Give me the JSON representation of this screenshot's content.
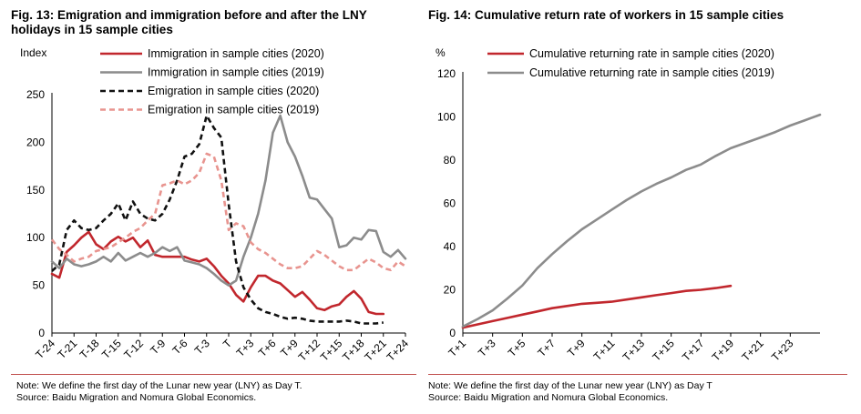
{
  "left": {
    "title": "Fig. 13: Emigration and immigration before and after the LNY holidays in 15 sample cities",
    "title_line1": "Fig. 13: Emigration and immigration before and after the LNY",
    "title_line2": "holidays in 15 sample cities",
    "note": "Note: We define the first day of the Lunar new year (LNY) as Day T.",
    "source": "Source: Baidu Migration and Nomura Global Economics."
  },
  "right": {
    "title": "Fig. 14: Cumulative return rate of workers in 15 sample cities",
    "note": "Note: We define the first day of the Lunar new year (LNY) as Day T",
    "source": "Source: Baidu Migration and Nomura Global Economics."
  },
  "colors": {
    "red": "#c1272d",
    "grey": "#8c8c8c",
    "black": "#111111",
    "pink": "#e8948f",
    "rule": "#c0504d"
  },
  "chart_data": [
    {
      "type": "line",
      "ylabel": "Index",
      "ylim": [
        0,
        250
      ],
      "yticks": [
        0,
        50,
        100,
        150,
        200,
        250
      ],
      "x_range": [
        -24,
        24
      ],
      "xtick_values": [
        -24,
        -21,
        -18,
        -15,
        -12,
        -9,
        -6,
        -3,
        0,
        3,
        6,
        9,
        12,
        15,
        18,
        21,
        24
      ],
      "xtick_labels": [
        "T-24",
        "T-21",
        "T-18",
        "T-15",
        "T-12",
        "T-9",
        "T-6",
        "T-3",
        "T",
        "T+3",
        "T+6",
        "T+9",
        "T+12",
        "T+15",
        "T+18",
        "T+21",
        "T+24"
      ],
      "legend_position": "top",
      "series": [
        {
          "name": "Immigration in sample cities (2020)",
          "color": "#c1272d",
          "style": "solid",
          "x": [
            -24,
            -23,
            -22,
            -21,
            -20,
            -19,
            -18,
            -17,
            -16,
            -15,
            -14,
            -13,
            -12,
            -11,
            -10,
            -9,
            -8,
            -7,
            -6,
            -5,
            -4,
            -3,
            -2,
            -1,
            0,
            1,
            2,
            3,
            4,
            5,
            6,
            7,
            8,
            9,
            10,
            11,
            12,
            13,
            14,
            15,
            16,
            17,
            18,
            19,
            20,
            21
          ],
          "values": [
            62,
            58,
            85,
            92,
            100,
            106,
            93,
            88,
            96,
            101,
            96,
            100,
            90,
            97,
            82,
            80,
            80,
            80,
            80,
            77,
            75,
            78,
            70,
            60,
            52,
            40,
            33,
            48,
            60,
            60,
            55,
            52,
            45,
            38,
            43,
            35,
            26,
            24,
            28,
            30,
            38,
            44,
            36,
            22,
            20,
            20
          ]
        },
        {
          "name": "Immigration in sample cities (2019)",
          "color": "#8c8c8c",
          "style": "solid",
          "x": [
            -24,
            -23,
            -22,
            -21,
            -20,
            -19,
            -18,
            -17,
            -16,
            -15,
            -14,
            -13,
            -12,
            -11,
            -10,
            -9,
            -8,
            -7,
            -6,
            -5,
            -4,
            -3,
            -2,
            -1,
            0,
            1,
            2,
            3,
            4,
            5,
            6,
            7,
            8,
            9,
            10,
            11,
            12,
            13,
            14,
            15,
            16,
            17,
            18,
            19,
            20,
            21,
            22,
            23,
            24
          ],
          "values": [
            75,
            68,
            78,
            72,
            70,
            72,
            75,
            80,
            75,
            84,
            76,
            80,
            84,
            80,
            84,
            90,
            86,
            90,
            76,
            74,
            72,
            68,
            62,
            55,
            50,
            55,
            80,
            100,
            125,
            160,
            210,
            228,
            200,
            185,
            165,
            142,
            140,
            130,
            120,
            90,
            92,
            100,
            98,
            108,
            107,
            85,
            80,
            87,
            78
          ]
        },
        {
          "name": "Emigration in sample cities (2020)",
          "color": "#111111",
          "style": "dashed",
          "x": [
            -24,
            -23,
            -22,
            -21,
            -20,
            -19,
            -18,
            -17,
            -16,
            -15,
            -14,
            -13,
            -12,
            -11,
            -10,
            -9,
            -8,
            -7,
            -6,
            -5,
            -4,
            -3,
            -2,
            -1,
            0,
            1,
            2,
            3,
            4,
            5,
            6,
            7,
            8,
            9,
            10,
            11,
            12,
            13,
            14,
            15,
            16,
            17,
            18,
            19,
            20,
            21
          ],
          "values": [
            65,
            72,
            108,
            118,
            110,
            108,
            110,
            118,
            125,
            136,
            118,
            138,
            125,
            120,
            118,
            125,
            140,
            160,
            185,
            188,
            198,
            228,
            215,
            205,
            135,
            75,
            48,
            35,
            26,
            22,
            20,
            17,
            15,
            16,
            15,
            13,
            12,
            12,
            12,
            12,
            13,
            12,
            10,
            10,
            10,
            11
          ]
        },
        {
          "name": "Emigration in sample cities (2019)",
          "color": "#e8948f",
          "style": "dashed",
          "x": [
            -24,
            -23,
            -22,
            -21,
            -20,
            -19,
            -18,
            -17,
            -16,
            -15,
            -14,
            -13,
            -12,
            -11,
            -10,
            -9,
            -8,
            -7,
            -6,
            -5,
            -4,
            -3,
            -2,
            -1,
            0,
            1,
            2,
            3,
            4,
            5,
            6,
            7,
            8,
            9,
            10,
            11,
            12,
            13,
            14,
            15,
            16,
            17,
            18,
            19,
            20,
            21,
            22,
            23,
            24
          ],
          "values": [
            98,
            88,
            82,
            75,
            78,
            80,
            86,
            88,
            90,
            95,
            100,
            106,
            110,
            118,
            125,
            155,
            157,
            160,
            156,
            160,
            168,
            188,
            185,
            160,
            108,
            115,
            112,
            95,
            88,
            84,
            78,
            72,
            68,
            68,
            70,
            78,
            86,
            82,
            76,
            70,
            66,
            66,
            72,
            78,
            74,
            68,
            66,
            75,
            70
          ]
        }
      ]
    },
    {
      "type": "line",
      "ylabel": "%",
      "ylim": [
        0,
        120
      ],
      "yticks": [
        0,
        20,
        40,
        60,
        80,
        100,
        120
      ],
      "x_range": [
        1,
        25
      ],
      "xtick_values": [
        1,
        3,
        5,
        7,
        9,
        11,
        13,
        15,
        17,
        19,
        21,
        23
      ],
      "xtick_labels": [
        "T+1",
        "T+3",
        "T+5",
        "T+7",
        "T+9",
        "T+11",
        "T+13",
        "T+15",
        "T+17",
        "T+19",
        "T+21",
        "T+23"
      ],
      "legend_position": "top",
      "series": [
        {
          "name": "Cumulative returning rate in sample cities (2020)",
          "color": "#c1272d",
          "style": "solid",
          "x": [
            1,
            2,
            3,
            4,
            5,
            6,
            7,
            8,
            9,
            10,
            11,
            12,
            13,
            14,
            15,
            16,
            17,
            18,
            19
          ],
          "values": [
            2.5,
            4,
            5.5,
            7,
            8.5,
            10,
            11.5,
            12.5,
            13.5,
            14,
            14.5,
            15.5,
            16.5,
            17.5,
            18.5,
            19.5,
            20,
            20.8,
            21.8
          ]
        },
        {
          "name": "Cumulative returning rate in sample cities (2019)",
          "color": "#8c8c8c",
          "style": "solid",
          "x": [
            1,
            2,
            3,
            4,
            5,
            6,
            7,
            8,
            9,
            10,
            11,
            12,
            13,
            14,
            15,
            16,
            17,
            18,
            19,
            20,
            21,
            22,
            23,
            24,
            25
          ],
          "values": [
            3,
            6.5,
            10.5,
            16,
            22,
            30,
            36.5,
            42.5,
            48,
            52.5,
            57,
            61.5,
            65.5,
            69,
            72,
            75.5,
            78,
            82,
            85.5,
            88,
            90.5,
            93,
            96,
            98.5,
            101
          ]
        }
      ]
    }
  ]
}
